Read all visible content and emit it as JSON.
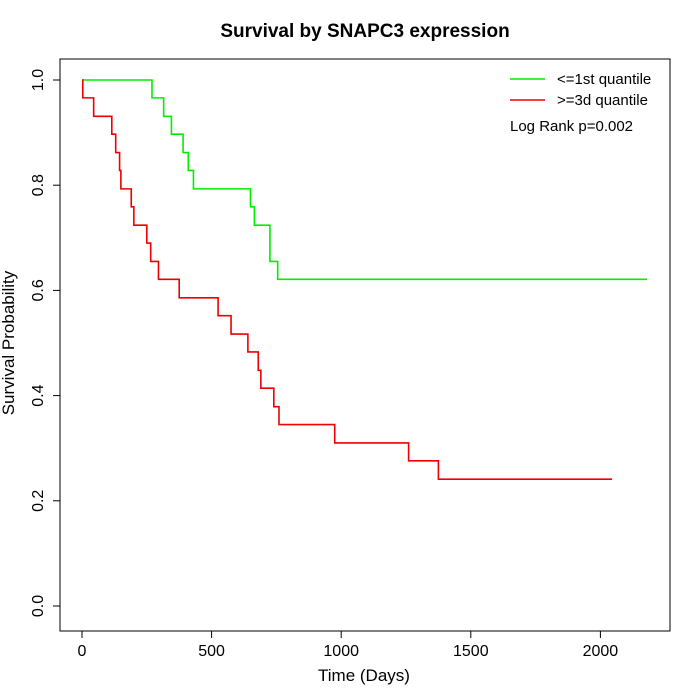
{
  "chart_data": {
    "type": "line",
    "title": "Survival by SNAPC3 expression",
    "xlabel": "Time (Days)",
    "ylabel": "Survival Probability",
    "xlim": [
      0,
      2200
    ],
    "ylim": [
      0,
      1
    ],
    "x_ticks": [
      0,
      500,
      1000,
      1500,
      2000
    ],
    "x_tick_labels": [
      "0",
      "500",
      "1000",
      "1500",
      "2000"
    ],
    "y_ticks": [
      0,
      0.2,
      0.4,
      0.6,
      0.8,
      1
    ],
    "y_tick_labels": [
      "0.0",
      "0.2",
      "0.4",
      "0.6",
      "0.8",
      "1.0"
    ],
    "grid": false,
    "legend_position": "top-right",
    "annotation": "Log Rank p=0.002",
    "series": [
      {
        "name": "<=1st quantile",
        "color": "#00ee00",
        "step": true,
        "x": [
          0,
          270,
          315,
          345,
          390,
          400,
          410,
          430,
          650,
          665,
          725,
          740,
          755,
          2180
        ],
        "y": [
          1.0,
          0.966,
          0.931,
          0.897,
          0.862,
          0.862,
          0.828,
          0.793,
          0.759,
          0.724,
          0.655,
          0.655,
          0.621,
          0.621
        ]
      },
      {
        "name": ">=3d quantile",
        "color": "#ee0000",
        "step": true,
        "x": [
          0,
          3,
          45,
          115,
          130,
          145,
          150,
          190,
          200,
          250,
          265,
          295,
          375,
          525,
          575,
          640,
          680,
          690,
          740,
          760,
          975,
          1260,
          1375,
          2045
        ],
        "y": [
          1.0,
          0.966,
          0.931,
          0.897,
          0.862,
          0.828,
          0.793,
          0.759,
          0.724,
          0.69,
          0.655,
          0.621,
          0.586,
          0.552,
          0.517,
          0.483,
          0.448,
          0.414,
          0.379,
          0.345,
          0.31,
          0.276,
          0.241,
          0.241
        ]
      }
    ]
  }
}
